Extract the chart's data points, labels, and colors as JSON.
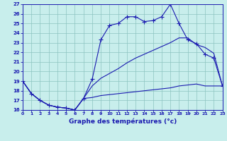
{
  "title": "Graphe des températures (°c)",
  "bg_color": "#c8eeec",
  "line_color": "#1a1ab0",
  "grid_color": "#8cc4c0",
  "xlim": [
    0,
    23
  ],
  "ylim": [
    16,
    27
  ],
  "xticks": [
    0,
    1,
    2,
    3,
    4,
    5,
    6,
    7,
    8,
    9,
    10,
    11,
    12,
    13,
    14,
    15,
    16,
    17,
    18,
    19,
    20,
    21,
    22,
    23
  ],
  "yticks": [
    16,
    17,
    18,
    19,
    20,
    21,
    22,
    23,
    24,
    25,
    26,
    27
  ],
  "line_upper_x": [
    0,
    1,
    2,
    3,
    4,
    5,
    6,
    7,
    8,
    9,
    10,
    11,
    12,
    13,
    14,
    15,
    16,
    17,
    18,
    19,
    20,
    21,
    22,
    23
  ],
  "line_upper_y": [
    19.0,
    17.7,
    17.0,
    16.5,
    16.3,
    16.2,
    16.0,
    17.2,
    19.2,
    23.3,
    24.8,
    25.0,
    25.7,
    25.7,
    25.2,
    25.3,
    25.7,
    27.0,
    25.0,
    23.3,
    22.9,
    21.8,
    21.4,
    18.5
  ],
  "line_mid_x": [
    0,
    1,
    2,
    3,
    4,
    5,
    6,
    7,
    8,
    9,
    10,
    11,
    12,
    13,
    14,
    15,
    16,
    17,
    18,
    19,
    20,
    21,
    22,
    23
  ],
  "line_mid_y": [
    19.0,
    17.7,
    17.0,
    16.5,
    16.3,
    16.2,
    16.0,
    17.2,
    18.5,
    19.3,
    19.8,
    20.3,
    20.9,
    21.4,
    21.8,
    22.2,
    22.6,
    23.0,
    23.5,
    23.5,
    22.8,
    22.5,
    21.9,
    18.5
  ],
  "line_lower_x": [
    0,
    1,
    2,
    3,
    4,
    5,
    6,
    7,
    8,
    9,
    10,
    11,
    12,
    13,
    14,
    15,
    16,
    17,
    18,
    19,
    20,
    21,
    22,
    23
  ],
  "line_lower_y": [
    19.0,
    17.7,
    17.0,
    16.5,
    16.3,
    16.2,
    16.0,
    17.2,
    17.3,
    17.5,
    17.6,
    17.7,
    17.8,
    17.9,
    18.0,
    18.1,
    18.2,
    18.3,
    18.5,
    18.6,
    18.7,
    18.5,
    18.5,
    18.5
  ]
}
